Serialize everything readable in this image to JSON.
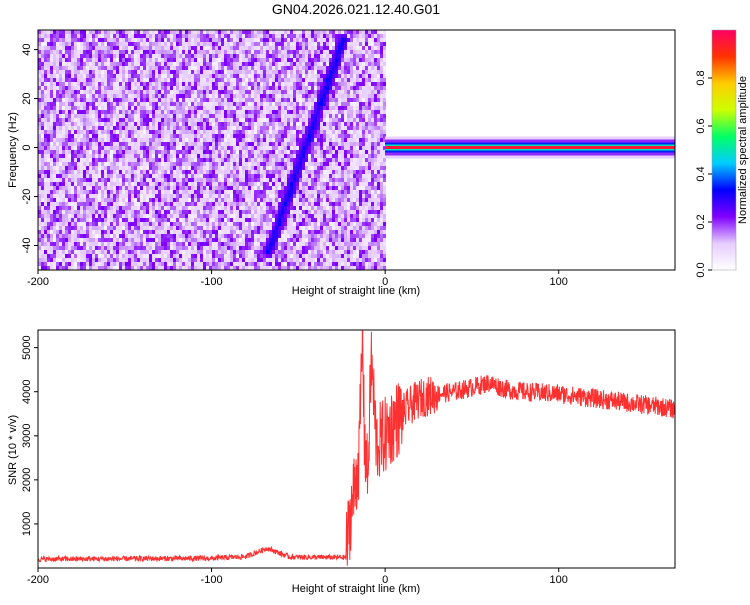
{
  "figure": {
    "title": "GN04.2026.021.12.40.G01"
  },
  "chart_data": [
    {
      "type": "heatmap",
      "xlabel": "Height of straight line (km)",
      "ylabel": "Frequency (Hz)",
      "xlim": [
        -200,
        167
      ],
      "ylim": [
        -50,
        48
      ],
      "x_ticks": [
        -200,
        -100,
        0,
        100
      ],
      "y_ticks": [
        -40,
        -20,
        0,
        20,
        40
      ],
      "colorbar": {
        "label": "Normalized spectral amplitude",
        "range": [
          0,
          1
        ],
        "ticks": [
          0.0,
          0.2,
          0.4,
          0.6,
          0.8
        ],
        "tick_labels": [
          "0.0",
          "0.2",
          "0.4",
          "0.6",
          "0.8"
        ],
        "colors": [
          "#ffffff",
          "#e6ccff",
          "#8000ff",
          "#0000ff",
          "#00ccff",
          "#00ff66",
          "#ccff00",
          "#ffcc00",
          "#ff3300",
          "#ff0066"
        ]
      },
      "features": {
        "noise_region_x": [
          -200,
          0
        ],
        "diagonal_band": {
          "from": [
            -68,
            -42
          ],
          "to": [
            -25,
            45
          ]
        },
        "carrier_line": {
          "x": [
            0,
            167
          ],
          "frequency": 0
        }
      }
    },
    {
      "type": "line",
      "xlabel": "Height of straight line (km)",
      "ylabel": "SNR (10 * v/v)",
      "xlim": [
        -200,
        167
      ],
      "ylim": [
        0,
        5400
      ],
      "x_ticks": [
        -200,
        -100,
        0,
        100
      ],
      "y_ticks": [
        1000,
        2000,
        3000,
        4000,
        5000
      ],
      "series": [
        {
          "color": "#ff3030",
          "x": [
            -200,
            -150,
            -100,
            -80,
            -68,
            -55,
            -23,
            -20,
            -15,
            -13,
            -12,
            -10,
            -8,
            -5,
            0,
            5,
            10,
            15,
            20,
            30,
            40,
            50,
            60,
            70,
            80,
            100,
            120,
            140,
            160,
            167
          ],
          "y": [
            200,
            210,
            220,
            260,
            450,
            250,
            240,
            1200,
            2500,
            5400,
            3000,
            2000,
            4800,
            2800,
            3000,
            3300,
            3500,
            3700,
            3850,
            3950,
            4000,
            4100,
            4200,
            4050,
            4000,
            3950,
            3850,
            3750,
            3650,
            3600
          ]
        }
      ]
    }
  ]
}
